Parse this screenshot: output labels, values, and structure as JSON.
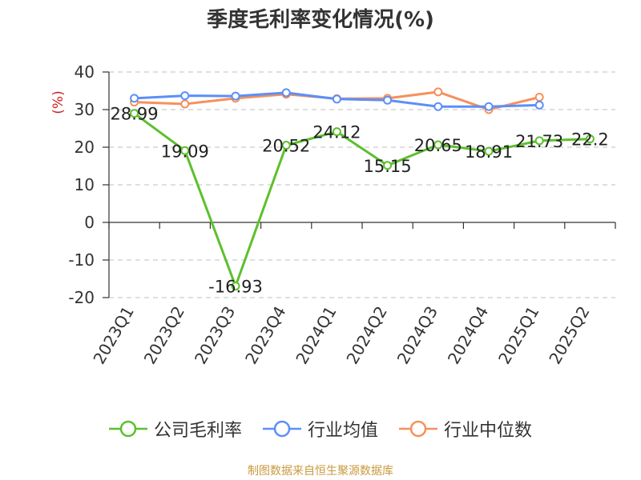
{
  "chart_data": {
    "type": "line",
    "title": "季度毛利率变化情况(%)",
    "ylabel": "(%)",
    "xlabel": "",
    "categories": [
      "2023Q1",
      "2023Q2",
      "2023Q3",
      "2023Q4",
      "2024Q1",
      "2024Q2",
      "2024Q3",
      "2024Q4",
      "2025Q1",
      "2025Q2"
    ],
    "ylim": [
      -20,
      40
    ],
    "yticks": [
      -20,
      -10,
      0,
      10,
      20,
      30,
      40
    ],
    "grid": true,
    "legend_position": "bottom",
    "series": [
      {
        "name": "公司毛利率",
        "color": "#5cc02c",
        "values": [
          28.99,
          19.09,
          -16.93,
          20.52,
          24.12,
          15.15,
          20.65,
          18.91,
          21.73,
          22.2
        ],
        "data_labels": [
          "28.99",
          "19.09",
          "-16.93",
          "20.52",
          "24.12",
          "15.15",
          "20.65",
          "18.91",
          "21.73",
          "22.2"
        ]
      },
      {
        "name": "行业均值",
        "color": "#5b8ff9",
        "values": [
          33.0,
          33.7,
          33.6,
          34.5,
          32.8,
          32.5,
          30.8,
          30.8,
          31.2,
          null
        ]
      },
      {
        "name": "行业中位数",
        "color": "#f6905c",
        "values": [
          32.0,
          31.5,
          33.0,
          34.1,
          32.9,
          33.0,
          34.7,
          30.0,
          33.3,
          null
        ]
      }
    ]
  },
  "footer": {
    "source": "制图数据来自恒生聚源数据库"
  }
}
